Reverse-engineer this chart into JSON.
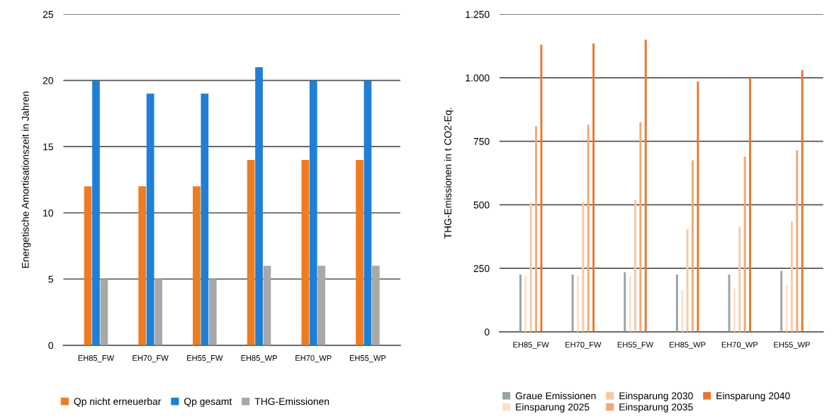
{
  "chart_data": [
    {
      "type": "bar",
      "ylabel": "Energetische Amortisationszeit in Jahren",
      "categories": [
        "EH85_FW",
        "EH70_FW",
        "EH55_FW",
        "EH85_WP",
        "EH70_WP",
        "EH55_WP"
      ],
      "series": [
        {
          "name": "Qp nicht erneuerbar",
          "color": "#ee7d22",
          "values": [
            12,
            12,
            12,
            14,
            14,
            14
          ]
        },
        {
          "name": "Qp gesamt",
          "color": "#1f7fd6",
          "values": [
            20,
            19,
            19,
            21,
            20,
            20
          ]
        },
        {
          "name": "THG-Emissionen",
          "color": "#a8a8a8",
          "values": [
            5,
            5,
            5,
            6,
            6,
            6
          ]
        }
      ],
      "ylim": [
        0,
        25
      ],
      "yticks": [
        0,
        5,
        10,
        15,
        20,
        25
      ],
      "grid": "y",
      "legend": "bottom"
    },
    {
      "type": "bar",
      "ylabel": "THG-Emissionen in t CO2-Eq.",
      "categories": [
        "EH85_FW",
        "EH70_FW",
        "EH55_FW",
        "EH85_WP",
        "EH70_WP",
        "EH55_WP"
      ],
      "series": [
        {
          "name": "Graue Emissionen",
          "color": "#9aa3a6",
          "values": [
            225,
            225,
            235,
            225,
            225,
            240
          ]
        },
        {
          "name": "Einsparung 2025",
          "color": "#fbe0cc",
          "values": [
            220,
            220,
            220,
            165,
            170,
            185
          ]
        },
        {
          "name": "Einsparung 2030",
          "color": "#f7c9a6",
          "values": [
            510,
            510,
            520,
            405,
            415,
            435
          ]
        },
        {
          "name": "Einsparung 2035",
          "color": "#f2a875",
          "values": [
            810,
            815,
            825,
            675,
            690,
            715
          ]
        },
        {
          "name": "Einsparung 2040",
          "color": "#e8772e",
          "values": [
            1130,
            1135,
            1150,
            985,
            1000,
            1030
          ]
        }
      ],
      "ylim": [
        0,
        1250
      ],
      "yticks": [
        0,
        250,
        500,
        750,
        {
          "value": 1000,
          "label": "1.000"
        },
        {
          "value": 1250,
          "label": "1.250"
        }
      ],
      "grid": "y",
      "legend": "bottom"
    }
  ]
}
